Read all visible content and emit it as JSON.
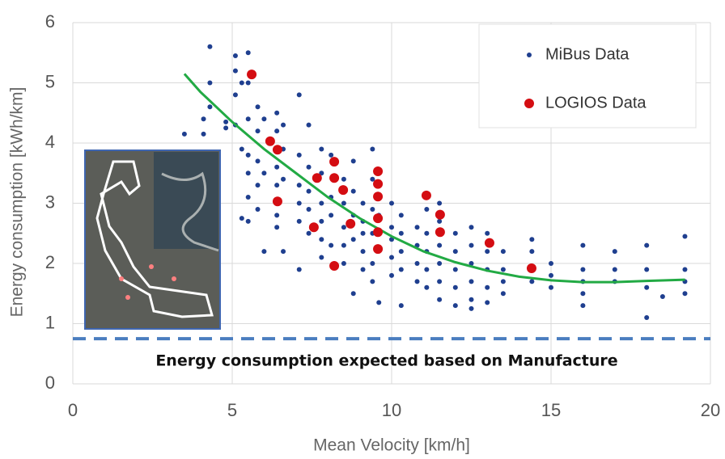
{
  "chart_data": {
    "type": "scatter",
    "xlabel": "Mean Velocity [km/h]",
    "ylabel": "Energy consumption [kWh/km]",
    "xlim": [
      0,
      20
    ],
    "xticks": [
      0,
      5,
      10,
      15,
      20
    ],
    "ylim": [
      0,
      6
    ],
    "yticks": [
      0,
      1,
      2,
      3,
      4,
      5,
      6
    ],
    "grid": true,
    "legend": "upper right",
    "series": [
      {
        "name": "MiBus Data",
        "color": "#1f3f8f",
        "size": 3,
        "x": [
          3.5,
          4.1,
          4.1,
          4.3,
          4.3,
          4.3,
          4.8,
          4.8,
          5.1,
          5.1,
          5.1,
          5.1,
          5.3,
          5.3,
          5.3,
          5.5,
          5.5,
          5.5,
          5.5,
          5.5,
          5.5,
          5.5,
          5.8,
          5.8,
          5.8,
          5.8,
          5.8,
          6.0,
          6.0,
          6.0,
          6.4,
          6.4,
          6.4,
          6.4,
          6.4,
          6.4,
          6.6,
          6.6,
          6.6,
          6.6,
          7.1,
          7.1,
          7.1,
          7.1,
          7.1,
          7.1,
          7.4,
          7.4,
          7.4,
          7.4,
          7.4,
          7.8,
          7.8,
          7.8,
          7.8,
          7.8,
          7.8,
          8.1,
          8.1,
          8.1,
          8.1,
          8.5,
          8.5,
          8.5,
          8.5,
          8.5,
          8.8,
          8.8,
          8.8,
          8.8,
          8.8,
          9.1,
          9.1,
          9.1,
          9.1,
          9.1,
          9.4,
          9.4,
          9.4,
          9.4,
          9.4,
          9.4,
          9.6,
          9.6,
          10.0,
          10.0,
          10.0,
          10.0,
          10.0,
          10.3,
          10.3,
          10.3,
          10.3,
          10.3,
          10.8,
          10.8,
          10.8,
          10.8,
          11.1,
          11.1,
          11.1,
          11.1,
          11.1,
          11.5,
          11.5,
          11.5,
          11.5,
          11.5,
          11.5,
          12.0,
          12.0,
          12.0,
          12.0,
          12.0,
          12.5,
          12.5,
          12.5,
          12.5,
          12.5,
          12.5,
          13.0,
          13.0,
          13.0,
          13.0,
          13.0,
          13.5,
          13.5,
          13.5,
          13.5,
          14.4,
          14.4,
          14.4,
          14.4,
          15.0,
          15.0,
          15.0,
          16.0,
          16.0,
          16.0,
          16.0,
          16.0,
          17.0,
          17.0,
          17.0,
          18.0,
          18.0,
          18.0,
          18.0,
          18.5,
          19.2,
          19.2,
          19.2,
          19.2
        ],
        "values": [
          4.15,
          4.15,
          4.4,
          5.6,
          5.0,
          4.6,
          4.35,
          4.25,
          5.45,
          5.2,
          4.8,
          4.3,
          5.0,
          3.9,
          2.75,
          5.5,
          5.0,
          4.4,
          3.8,
          3.5,
          3.1,
          2.7,
          4.6,
          4.2,
          3.7,
          3.3,
          2.9,
          4.4,
          3.5,
          2.2,
          4.5,
          4.2,
          3.6,
          3.3,
          2.8,
          2.6,
          4.3,
          3.9,
          3.4,
          2.2,
          4.8,
          3.8,
          3.3,
          3.0,
          2.7,
          1.9,
          4.3,
          3.6,
          3.2,
          2.9,
          2.5,
          3.9,
          3.5,
          3.0,
          2.7,
          2.4,
          2.1,
          3.8,
          3.1,
          2.8,
          2.3,
          3.4,
          3.0,
          2.6,
          2.3,
          2.0,
          3.7,
          3.2,
          2.8,
          2.4,
          1.5,
          3.0,
          2.7,
          2.5,
          2.2,
          1.9,
          3.9,
          3.4,
          2.9,
          2.5,
          2.0,
          1.7,
          2.8,
          1.35,
          3.0,
          2.6,
          2.4,
          2.1,
          1.8,
          2.8,
          2.5,
          2.2,
          1.9,
          1.3,
          2.6,
          2.3,
          2.0,
          1.7,
          2.9,
          2.5,
          2.2,
          1.9,
          1.6,
          3.0,
          2.7,
          2.3,
          2.0,
          1.7,
          1.4,
          2.5,
          2.2,
          1.9,
          1.6,
          1.3,
          2.6,
          2.3,
          2.0,
          1.7,
          1.4,
          1.25,
          2.5,
          2.2,
          1.9,
          1.6,
          1.35,
          2.2,
          1.9,
          1.7,
          1.5,
          2.4,
          2.2,
          1.9,
          1.7,
          2.0,
          1.8,
          1.6,
          2.3,
          1.9,
          1.7,
          1.5,
          1.3,
          2.2,
          1.9,
          1.7,
          2.3,
          1.9,
          1.6,
          1.1,
          1.45,
          2.45,
          1.9,
          1.7,
          1.5
        ]
      },
      {
        "name": "LOGIOS Data",
        "color": "#d40d12",
        "size": 6,
        "x": [
          5.61,
          6.19,
          6.42,
          6.42,
          7.66,
          7.56,
          8.2,
          8.2,
          8.48,
          8.2,
          8.71,
          9.57,
          9.57,
          9.57,
          9.57,
          9.57,
          9.57,
          11.09,
          11.52,
          11.52,
          13.07,
          14.39
        ],
        "values": [
          5.14,
          4.03,
          3.89,
          3.03,
          3.42,
          2.6,
          3.69,
          3.42,
          3.22,
          1.96,
          2.66,
          3.53,
          3.32,
          3.11,
          2.75,
          2.52,
          2.24,
          3.13,
          2.81,
          2.52,
          2.34,
          1.92
        ]
      }
    ],
    "fit": {
      "color": "#22aa44",
      "x": [
        3.5,
        4,
        5,
        6,
        7,
        8,
        9,
        10,
        11,
        12,
        13,
        14,
        15,
        16,
        17,
        18,
        19.2
      ],
      "values": [
        5.15,
        4.85,
        4.35,
        3.9,
        3.5,
        3.1,
        2.75,
        2.45,
        2.2,
        2.02,
        1.88,
        1.78,
        1.72,
        1.69,
        1.69,
        1.71,
        1.73
      ]
    },
    "reference_line": {
      "value": 0.75,
      "color": "#4a7dbf",
      "label": "Energy consumption expected based on Manufacture"
    }
  }
}
